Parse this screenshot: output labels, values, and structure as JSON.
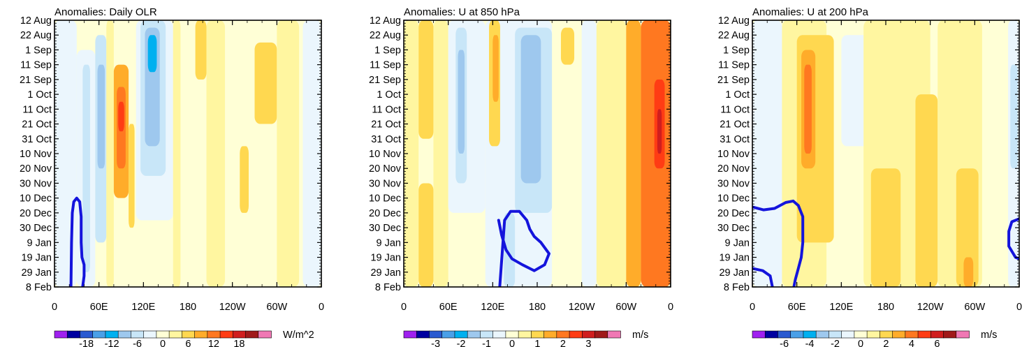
{
  "figure": {
    "panels_count": 3
  },
  "chart_data": [
    {
      "type": "heatmap",
      "title": "Anomalies: Daily OLR",
      "units": "W/m^2",
      "x_ticks": [
        "0",
        "60E",
        "120E",
        "180",
        "120W",
        "60W",
        "0"
      ],
      "x_tick_lon": [
        0,
        60,
        120,
        180,
        240,
        300,
        360
      ],
      "y_ticks": [
        "12 Aug",
        "22 Aug",
        "1 Sep",
        "11 Sep",
        "21 Sep",
        "1 Oct",
        "11 Oct",
        "21 Oct",
        "31 Oct",
        "10 Nov",
        "20 Nov",
        "30 Nov",
        "10 Dec",
        "20 Dec",
        "30 Dec",
        "9 Jan",
        "19 Jan",
        "29 Jan",
        "8 Feb"
      ],
      "colorbar_labels": [
        "-18",
        "-12",
        "-6",
        "0",
        "6",
        "12",
        "18"
      ],
      "colorbar_label_index": [
        2,
        4,
        6,
        8,
        10,
        12,
        14
      ],
      "colorbar_colors": [
        "#a020f0",
        "#0000a0",
        "#2a5ad0",
        "#4aa0e8",
        "#00b0f0",
        "#9ec8ee",
        "#c8e6f8",
        "#ebf6fd",
        "#ffffd6",
        "#fff6a0",
        "#ffd850",
        "#ffac2a",
        "#ff7820",
        "#ff3c14",
        "#d01e1e",
        "#a01a1a",
        "#f078b4"
      ],
      "bands": [
        {
          "lon0": 0,
          "lon1": 30,
          "v0": 0,
          "v1": 360,
          "level": -1
        },
        {
          "lon0": 30,
          "lon1": 55,
          "v0": 40,
          "v1": 360,
          "level": -1
        },
        {
          "lon0": 38,
          "lon1": 48,
          "v0": 60,
          "v1": 340,
          "level": -2
        },
        {
          "lon0": 55,
          "lon1": 70,
          "v0": 20,
          "v1": 300,
          "level": -2
        },
        {
          "lon0": 58,
          "lon1": 68,
          "v0": 60,
          "v1": 200,
          "level": -3
        },
        {
          "lon0": 70,
          "lon1": 80,
          "v0": 0,
          "v1": 360,
          "level": 1
        },
        {
          "lon0": 80,
          "lon1": 100,
          "v0": 60,
          "v1": 240,
          "level": 3
        },
        {
          "lon0": 84,
          "lon1": 96,
          "v0": 90,
          "v1": 200,
          "level": 4
        },
        {
          "lon0": 86,
          "lon1": 94,
          "v0": 110,
          "v1": 150,
          "level": 5
        },
        {
          "lon0": 100,
          "lon1": 108,
          "v0": 140,
          "v1": 280,
          "level": 2
        },
        {
          "lon0": 110,
          "lon1": 160,
          "v0": 0,
          "v1": 270,
          "level": -1
        },
        {
          "lon0": 116,
          "lon1": 150,
          "v0": 0,
          "v1": 210,
          "level": -2
        },
        {
          "lon0": 122,
          "lon1": 142,
          "v0": 10,
          "v1": 170,
          "level": -3
        },
        {
          "lon0": 126,
          "lon1": 138,
          "v0": 20,
          "v1": 70,
          "level": -4
        },
        {
          "lon0": 160,
          "lon1": 170,
          "v0": 0,
          "v1": 360,
          "level": 1
        },
        {
          "lon0": 190,
          "lon1": 205,
          "v0": 0,
          "v1": 80,
          "level": 2
        },
        {
          "lon0": 205,
          "lon1": 230,
          "v0": 0,
          "v1": 360,
          "level": 1
        },
        {
          "lon0": 250,
          "lon1": 262,
          "v0": 170,
          "v1": 260,
          "level": 2
        },
        {
          "lon0": 270,
          "lon1": 300,
          "v0": 30,
          "v1": 140,
          "level": 2
        },
        {
          "lon0": 300,
          "lon1": 330,
          "v0": 0,
          "v1": 360,
          "level": 1
        },
        {
          "lon0": 335,
          "lon1": 360,
          "v0": 0,
          "v1": 360,
          "level": -1
        }
      ],
      "contour": [
        [
          22,
          380
        ],
        [
          23,
          300
        ],
        [
          24,
          260
        ],
        [
          26,
          245
        ],
        [
          30,
          240
        ],
        [
          34,
          245
        ],
        [
          36,
          265
        ],
        [
          36,
          300
        ],
        [
          37,
          320
        ],
        [
          40,
          330
        ],
        [
          40,
          345
        ],
        [
          38,
          360
        ],
        [
          37,
          380
        ]
      ]
    },
    {
      "type": "heatmap",
      "title": "Anomalies: U at 850 hPa",
      "units": "m/s",
      "x_ticks": [
        "0",
        "60E",
        "120E",
        "180",
        "120W",
        "60W",
        "0"
      ],
      "x_tick_lon": [
        0,
        60,
        120,
        180,
        240,
        300,
        360
      ],
      "y_ticks": [
        "12 Aug",
        "22 Aug",
        "1 Sep",
        "11 Sep",
        "21 Sep",
        "1 Oct",
        "11 Oct",
        "21 Oct",
        "31 Oct",
        "10 Nov",
        "20 Nov",
        "30 Nov",
        "10 Dec",
        "20 Dec",
        "30 Dec",
        "9 Jan",
        "19 Jan",
        "29 Jan",
        "8 Feb"
      ],
      "colorbar_labels": [
        "-3",
        "-2",
        "-1",
        "0",
        "1",
        "2",
        "3"
      ],
      "colorbar_label_index": [
        2,
        4,
        6,
        8,
        10,
        12,
        14
      ],
      "colorbar_colors": [
        "#a020f0",
        "#0000a0",
        "#2a5ad0",
        "#4aa0e8",
        "#00b0f0",
        "#9ec8ee",
        "#c8e6f8",
        "#ebf6fd",
        "#ffffd6",
        "#fff6a0",
        "#ffd850",
        "#ffac2a",
        "#ff7820",
        "#ff3c14",
        "#d01e1e",
        "#a01a1a",
        "#f078b4"
      ],
      "bands": [
        {
          "lon0": 0,
          "lon1": 20,
          "v0": 0,
          "v1": 360,
          "level": 1
        },
        {
          "lon0": 20,
          "lon1": 40,
          "v0": 0,
          "v1": 160,
          "level": 2
        },
        {
          "lon0": 20,
          "lon1": 40,
          "v0": 220,
          "v1": 360,
          "level": 2
        },
        {
          "lon0": 40,
          "lon1": 60,
          "v0": 0,
          "v1": 360,
          "level": 1
        },
        {
          "lon0": 60,
          "lon1": 110,
          "v0": 0,
          "v1": 260,
          "level": -1
        },
        {
          "lon0": 70,
          "lon1": 85,
          "v0": 10,
          "v1": 220,
          "level": -2
        },
        {
          "lon0": 73,
          "lon1": 82,
          "v0": 40,
          "v1": 180,
          "level": -3
        },
        {
          "lon0": 110,
          "lon1": 200,
          "v0": 0,
          "v1": 360,
          "level": -1
        },
        {
          "lon0": 115,
          "lon1": 130,
          "v0": 0,
          "v1": 170,
          "level": 2
        },
        {
          "lon0": 120,
          "lon1": 128,
          "v0": 20,
          "v1": 110,
          "level": 3
        },
        {
          "lon0": 135,
          "lon1": 150,
          "v0": 260,
          "v1": 380,
          "level": -2
        },
        {
          "lon0": 150,
          "lon1": 200,
          "v0": 10,
          "v1": 260,
          "level": -2
        },
        {
          "lon0": 158,
          "lon1": 185,
          "v0": 20,
          "v1": 220,
          "level": -3
        },
        {
          "lon0": 200,
          "lon1": 240,
          "v0": 0,
          "v1": 360,
          "level": 0
        },
        {
          "lon0": 212,
          "lon1": 230,
          "v0": 10,
          "v1": 60,
          "level": 2
        },
        {
          "lon0": 240,
          "lon1": 260,
          "v0": 0,
          "v1": 360,
          "level": -1
        },
        {
          "lon0": 260,
          "lon1": 300,
          "v0": 0,
          "v1": 360,
          "level": 1
        },
        {
          "lon0": 300,
          "lon1": 320,
          "v0": 0,
          "v1": 360,
          "level": 3
        },
        {
          "lon0": 320,
          "lon1": 360,
          "v0": 0,
          "v1": 360,
          "level": 4
        },
        {
          "lon0": 338,
          "lon1": 352,
          "v0": 80,
          "v1": 200,
          "level": 5
        },
        {
          "lon0": 342,
          "lon1": 348,
          "v0": 120,
          "v1": 180,
          "level": 6
        }
      ],
      "contour": [
        [
          128,
          380
        ],
        [
          136,
          270
        ],
        [
          144,
          258
        ],
        [
          156,
          258
        ],
        [
          166,
          270
        ],
        [
          170,
          282
        ],
        [
          176,
          292
        ],
        [
          185,
          300
        ],
        [
          196,
          315
        ],
        [
          190,
          330
        ],
        [
          176,
          338
        ],
        [
          160,
          330
        ],
        [
          146,
          322
        ],
        [
          138,
          310
        ],
        [
          132,
          290
        ],
        [
          128,
          270
        ]
      ]
    },
    {
      "type": "heatmap",
      "title": "Anomalies: U at 200 hPa",
      "units": "m/s",
      "x_ticks": [
        "0",
        "60E",
        "120E",
        "180",
        "120W",
        "60W",
        "0"
      ],
      "x_tick_lon": [
        0,
        60,
        120,
        180,
        240,
        300,
        360
      ],
      "y_ticks": [
        "12 Aug",
        "22 Aug",
        "1 Sep",
        "11 Sep",
        "21 Sep",
        "1 Oct",
        "11 Oct",
        "21 Oct",
        "31 Oct",
        "10 Nov",
        "20 Nov",
        "30 Nov",
        "10 Dec",
        "20 Dec",
        "30 Dec",
        "9 Jan",
        "19 Jan",
        "29 Jan",
        "8 Feb"
      ],
      "colorbar_labels": [
        "-6",
        "-4",
        "-2",
        "0",
        "2",
        "4",
        "6"
      ],
      "colorbar_label_index": [
        2,
        4,
        6,
        8,
        10,
        12,
        14
      ],
      "colorbar_colors": [
        "#a020f0",
        "#0000a0",
        "#2a5ad0",
        "#4aa0e8",
        "#00b0f0",
        "#9ec8ee",
        "#c8e6f8",
        "#ebf6fd",
        "#ffffd6",
        "#fff6a0",
        "#ffd850",
        "#ffac2a",
        "#ff7820",
        "#ff3c14",
        "#d01e1e",
        "#a01a1a",
        "#f078b4"
      ],
      "bands": [
        {
          "lon0": 0,
          "lon1": 40,
          "v0": 0,
          "v1": 360,
          "level": -1
        },
        {
          "lon0": 40,
          "lon1": 100,
          "v0": 0,
          "v1": 360,
          "level": 1
        },
        {
          "lon0": 60,
          "lon1": 110,
          "v0": 20,
          "v1": 300,
          "level": 2
        },
        {
          "lon0": 66,
          "lon1": 85,
          "v0": 40,
          "v1": 200,
          "level": 3
        },
        {
          "lon0": 70,
          "lon1": 80,
          "v0": 60,
          "v1": 180,
          "level": 4
        },
        {
          "lon0": 110,
          "lon1": 150,
          "v0": 0,
          "v1": 360,
          "level": 0
        },
        {
          "lon0": 120,
          "lon1": 160,
          "v0": 20,
          "v1": 170,
          "level": -1
        },
        {
          "lon0": 150,
          "lon1": 240,
          "v0": 0,
          "v1": 360,
          "level": 1
        },
        {
          "lon0": 160,
          "lon1": 200,
          "v0": 200,
          "v1": 380,
          "level": 2
        },
        {
          "lon0": 220,
          "lon1": 250,
          "v0": 100,
          "v1": 360,
          "level": 2
        },
        {
          "lon0": 250,
          "lon1": 310,
          "v0": 0,
          "v1": 360,
          "level": 1
        },
        {
          "lon0": 275,
          "lon1": 305,
          "v0": 200,
          "v1": 380,
          "level": 2
        },
        {
          "lon0": 285,
          "lon1": 298,
          "v0": 320,
          "v1": 370,
          "level": 3
        },
        {
          "lon0": 310,
          "lon1": 345,
          "v0": 0,
          "v1": 360,
          "level": 0
        },
        {
          "lon0": 345,
          "lon1": 360,
          "v0": 0,
          "v1": 360,
          "level": -1
        },
        {
          "lon0": 348,
          "lon1": 358,
          "v0": 60,
          "v1": 200,
          "level": -2
        }
      ],
      "contour": [
        [
          0,
          252
        ],
        [
          15,
          256
        ],
        [
          30,
          254
        ],
        [
          45,
          246
        ],
        [
          55,
          244
        ],
        [
          62,
          250
        ],
        [
          68,
          265
        ],
        [
          68,
          300
        ],
        [
          66,
          320
        ],
        [
          62,
          335
        ],
        [
          58,
          350
        ],
        [
          52,
          380
        ]
      ],
      "contour2": [
        [
          0,
          335
        ],
        [
          14,
          338
        ],
        [
          24,
          345
        ],
        [
          27,
          360
        ],
        [
          25,
          380
        ]
      ],
      "contour3": [
        [
          0,
          375
        ],
        [
          10,
          380
        ]
      ],
      "contour4": [
        [
          360,
          268
        ],
        [
          350,
          272
        ],
        [
          346,
          285
        ],
        [
          346,
          305
        ],
        [
          355,
          320
        ],
        [
          360,
          322
        ]
      ]
    }
  ]
}
